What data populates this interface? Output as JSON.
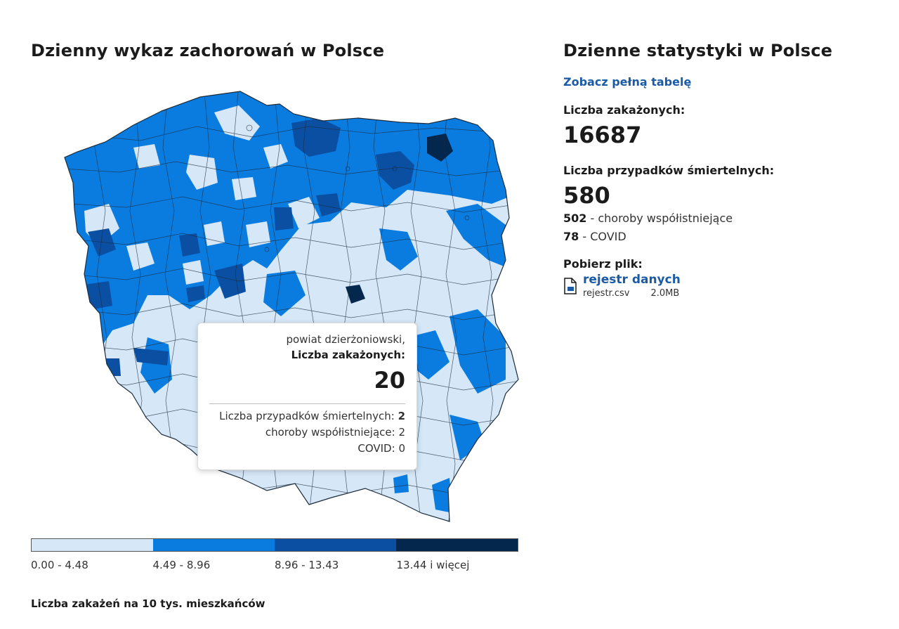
{
  "map_section": {
    "title": "Dzienny wykaz zachorowań w Polsce",
    "legend": {
      "bins": [
        {
          "label": "0.00 - 4.48",
          "color": "#d6e7f8"
        },
        {
          "label": "4.49 - 8.96",
          "color": "#0a7ce0"
        },
        {
          "label": "8.96 - 13.43",
          "color": "#0b4fa3"
        },
        {
          "label": "13.44 i więcej",
          "color": "#04284d"
        }
      ],
      "caption": "Liczba zakażeń na 10 tys. mieszkańców"
    },
    "tooltip": {
      "district": "powiat dzierżoniowski,",
      "cases_label": "Liczba zakażonych:",
      "cases_value": "20",
      "deaths_label": "Liczba przypadków śmiertelnych:",
      "deaths_value": "2",
      "comorbid_label": "choroby współistniejące:",
      "comorbid_value": "2",
      "covid_label": "COVID:",
      "covid_value": "0"
    }
  },
  "stats_section": {
    "title": "Dzienne statystyki w Polsce",
    "full_table_link": "Zobacz pełną tabelę",
    "infected_label": "Liczba zakażonych:",
    "infected_value": "16687",
    "deaths_label": "Liczba przypadków śmiertelnych:",
    "deaths_value": "580",
    "comorbid_value": "502",
    "comorbid_text": " - choroby współistniejące",
    "covid_value": "78",
    "covid_text": " - COVID",
    "download_label": "Pobierz plik:",
    "file": {
      "name": "rejestr danych",
      "filename": "rejestr.csv",
      "size": "2.0MB",
      "icon": "file-download-icon"
    }
  }
}
